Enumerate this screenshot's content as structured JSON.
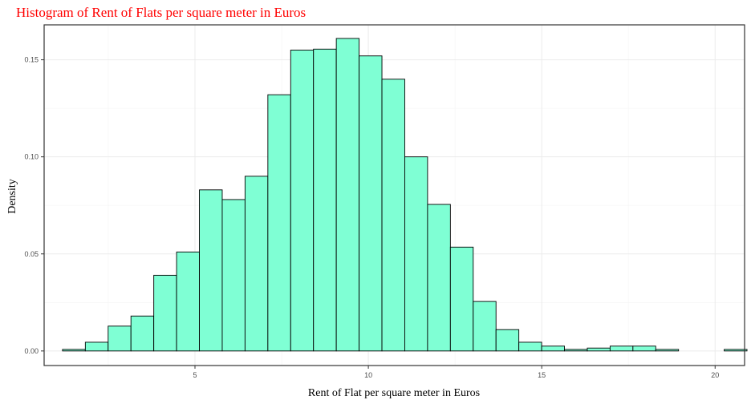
{
  "chart_data": {
    "type": "bar",
    "title": "Histogram of Rent of Flats per square meter in Euros",
    "xlabel": "Rent of Flat per square meter in Euros",
    "ylabel": "Density",
    "xlim": [
      0.65,
      20.85
    ],
    "ylim": [
      -0.0075,
      0.168
    ],
    "x_ticks": [
      5,
      10,
      15,
      20
    ],
    "x_tick_labels": [
      "5",
      "10",
      "15",
      "20"
    ],
    "y_ticks": [
      0.0,
      0.05,
      0.1,
      0.15
    ],
    "y_tick_labels": [
      "0.00",
      "0.05",
      "0.10",
      "0.15"
    ],
    "grid": true,
    "bar_fill": "#7fffd4",
    "bar_outline": "#000000",
    "title_color": "#ff0000",
    "bins": {
      "start": 1.18,
      "width": 0.658,
      "values": [
        0.0008,
        0.0045,
        0.0128,
        0.018,
        0.039,
        0.051,
        0.083,
        0.078,
        0.09,
        0.132,
        0.155,
        0.1555,
        0.161,
        0.152,
        0.14,
        0.1,
        0.0755,
        0.0535,
        0.0255,
        0.011,
        0.0045,
        0.0025,
        0.0008,
        0.0015,
        0.0025,
        0.0025,
        0.0008,
        0.0,
        0.0,
        0.0008
      ]
    }
  }
}
